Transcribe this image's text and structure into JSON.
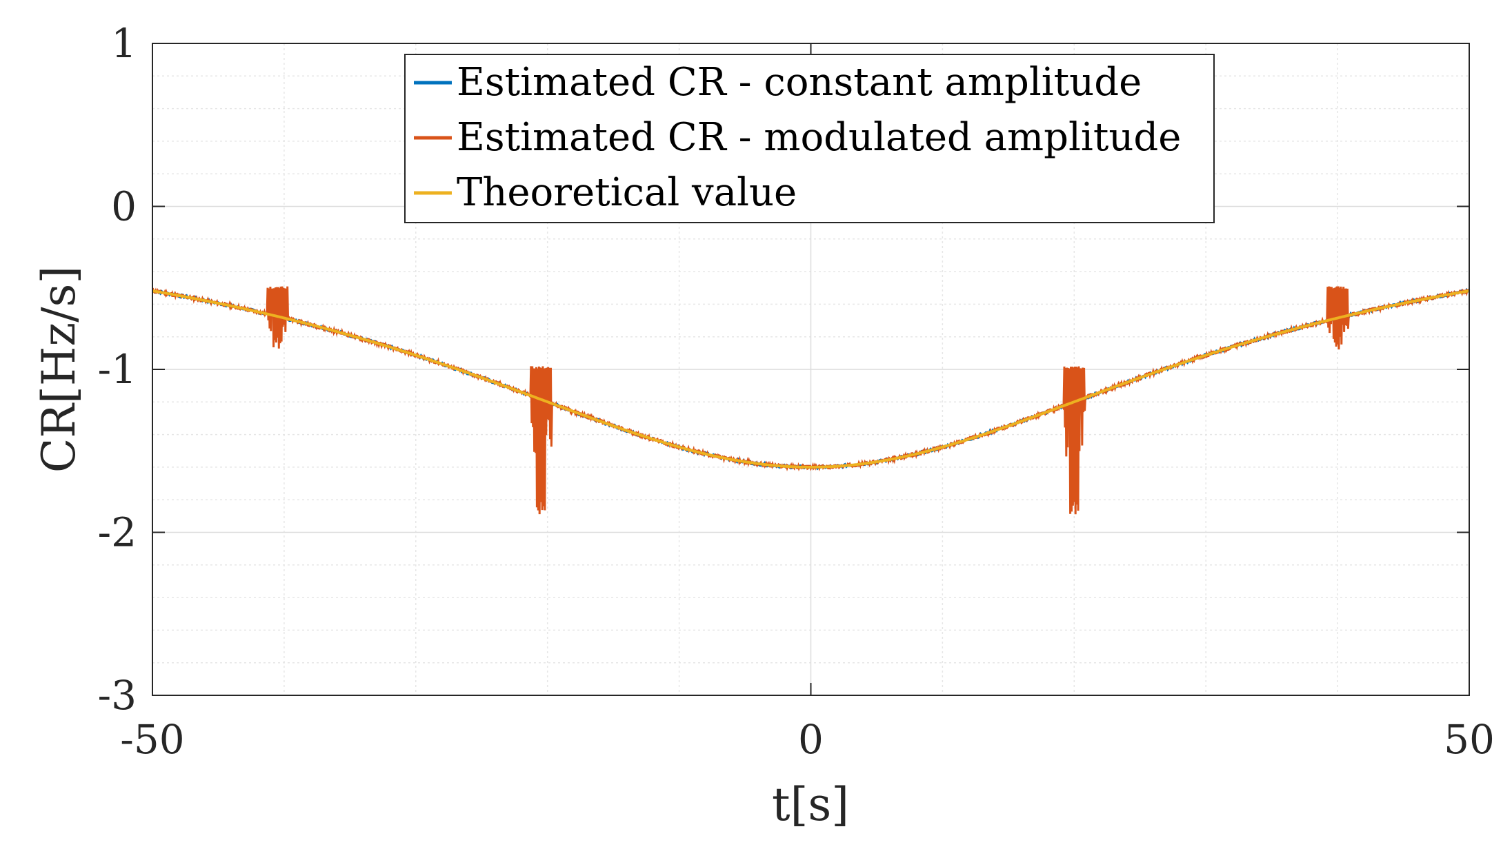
{
  "chart_data": {
    "type": "line",
    "title": "",
    "xlabel": "t[s]",
    "ylabel": "CR[Hz/s]",
    "xlim": [
      -50,
      50
    ],
    "ylim": [
      -3,
      1
    ],
    "x_ticks": [
      -50,
      0,
      50
    ],
    "x_tick_labels": [
      "-50",
      "0",
      "50"
    ],
    "y_ticks": [
      -3,
      -2,
      -1,
      0,
      1
    ],
    "y_tick_labels": [
      "-3",
      "-2",
      "-1",
      "0",
      "1"
    ],
    "grid": true,
    "minor_grid": true,
    "legend_position": "top-center",
    "series": [
      {
        "name": "Estimated CR - constant amplitude",
        "color": "#0072BD",
        "model": "theoretical",
        "x": [
          -50,
          -40,
          -30,
          -20,
          -10,
          0,
          10,
          20,
          30,
          40,
          50
        ],
        "y": [
          -0.42,
          -0.56,
          -0.79,
          -1.12,
          -1.44,
          -1.6,
          -1.44,
          -1.12,
          -0.79,
          -0.56,
          -0.42
        ]
      },
      {
        "name": "Estimated CR - modulated amplitude",
        "color": "#D95319",
        "model": "theoretical",
        "x": [
          -50,
          -40,
          -30,
          -20,
          -10,
          0,
          10,
          20,
          30,
          40,
          50
        ],
        "y": [
          -0.42,
          -0.56,
          -0.79,
          -1.12,
          -1.44,
          -1.6,
          -1.44,
          -1.12,
          -0.79,
          -0.56,
          -0.42
        ],
        "spike_regions": [
          {
            "t_center": -40.5,
            "min": -0.84,
            "max": -0.49
          },
          {
            "t_center": -20.5,
            "min": -1.85,
            "max": -0.98
          },
          {
            "t_center": 20.0,
            "min": -1.85,
            "max": -0.98
          },
          {
            "t_center": 40.0,
            "min": -0.84,
            "max": -0.49
          }
        ]
      },
      {
        "name": "Theoretical value",
        "color": "#EDB120",
        "model": "theoretical",
        "x": [
          -50,
          -40,
          -30,
          -20,
          -10,
          0,
          10,
          20,
          30,
          40,
          50
        ],
        "y": [
          -0.42,
          -0.56,
          -0.79,
          -1.12,
          -1.44,
          -1.6,
          -1.44,
          -1.12,
          -0.79,
          -0.56,
          -0.42
        ]
      }
    ]
  }
}
